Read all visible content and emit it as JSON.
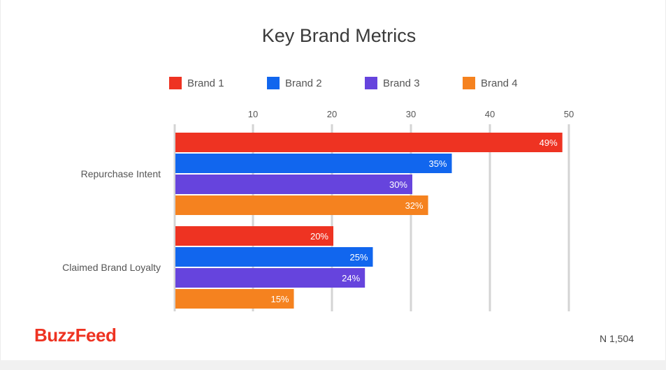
{
  "chart_data": {
    "type": "bar",
    "orientation": "horizontal",
    "title": "Key Brand Metrics",
    "xlabel": "",
    "ylabel": "",
    "xlim": [
      0,
      50
    ],
    "x_ticks": [
      10,
      20,
      30,
      40,
      50
    ],
    "grid": true,
    "legend_position": "top",
    "categories": [
      "Repurchase Intent",
      "Claimed Brand Loyalty"
    ],
    "series": [
      {
        "name": "Brand 1",
        "color": "#ee3322",
        "values": [
          49,
          20
        ],
        "labels": [
          "49%",
          "20%"
        ]
      },
      {
        "name": "Brand 2",
        "color": "#1166ee",
        "values": [
          35,
          25
        ],
        "labels": [
          "35%",
          "25%"
        ]
      },
      {
        "name": "Brand 3",
        "color": "#6644dd",
        "values": [
          30,
          24
        ],
        "labels": [
          "30%",
          "24%"
        ]
      },
      {
        "name": "Brand 4",
        "color": "#f5821f",
        "values": [
          32,
          15
        ],
        "labels": [
          "32%",
          "15%"
        ]
      }
    ]
  },
  "footer": {
    "logo": "BuzzFeed",
    "sample_note": "N 1,504"
  }
}
